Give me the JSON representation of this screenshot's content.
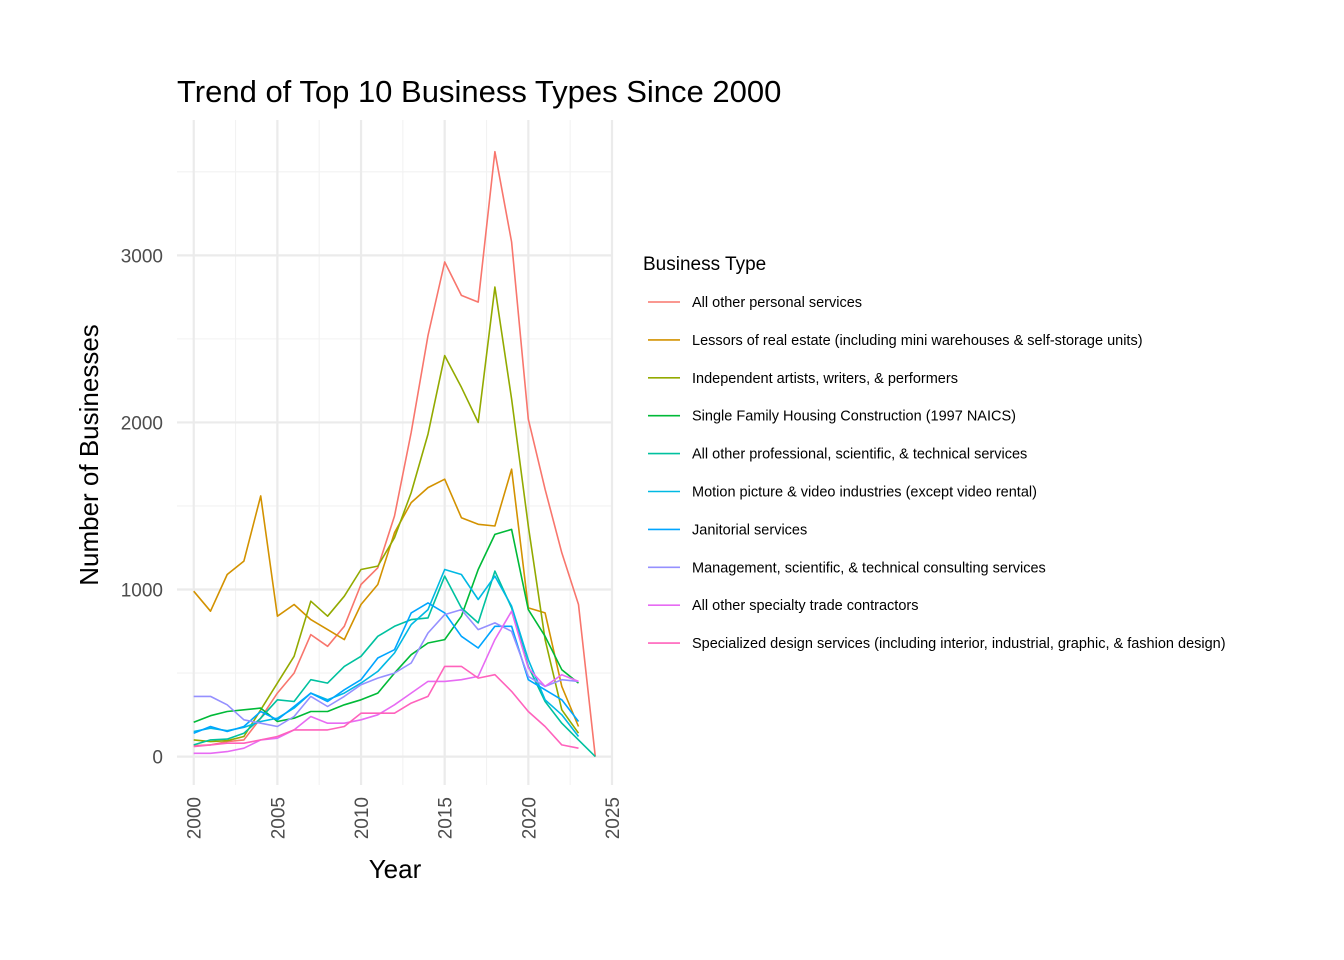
{
  "chart_data": {
    "type": "line",
    "title": "Trend of Top 10 Business Types Since 2000",
    "xlabel": "Year",
    "ylabel": "Number of Businesses",
    "xlim": [
      1999,
      2025
    ],
    "ylim": [
      -170,
      3810
    ],
    "x_ticks": [
      2000,
      2005,
      2010,
      2015,
      2020,
      2025
    ],
    "y_ticks": [
      0,
      1000,
      2000,
      3000
    ],
    "grid": true,
    "legend_title": "Business Type",
    "legend_position": "right",
    "x": [
      2000,
      2001,
      2002,
      2003,
      2004,
      2005,
      2006,
      2007,
      2008,
      2009,
      2010,
      2011,
      2012,
      2013,
      2014,
      2015,
      2016,
      2017,
      2018,
      2019,
      2020,
      2021,
      2022,
      2023,
      2024
    ],
    "series": [
      {
        "name": "All other personal services",
        "color": "#F8766D",
        "values": [
          65,
          70,
          90,
          100,
          230,
          380,
          500,
          730,
          660,
          780,
          1030,
          1130,
          1440,
          1940,
          2520,
          2960,
          2760,
          2720,
          3620,
          3080,
          2020,
          1600,
          1220,
          910,
          0
        ]
      },
      {
        "name": "Lessors of real estate (including mini warehouses & self-storage units)",
        "color": "#D39200",
        "values": [
          990,
          870,
          1090,
          1170,
          1560,
          840,
          910,
          820,
          760,
          700,
          910,
          1030,
          1340,
          1520,
          1610,
          1660,
          1430,
          1390,
          1380,
          1720,
          890,
          860,
          420,
          180,
          null
        ]
      },
      {
        "name": "Independent artists, writers, & performers",
        "color": "#93AA00",
        "values": [
          100,
          90,
          95,
          120,
          280,
          440,
          600,
          930,
          840,
          960,
          1120,
          1140,
          1310,
          1580,
          1930,
          2400,
          2210,
          2000,
          2810,
          2140,
          1380,
          700,
          280,
          140,
          null
        ]
      },
      {
        "name": "Single Family Housing Construction (1997 NAICS)",
        "color": "#00BA38",
        "values": [
          205,
          245,
          270,
          280,
          290,
          210,
          230,
          270,
          270,
          310,
          340,
          380,
          500,
          610,
          680,
          700,
          840,
          1120,
          1330,
          1360,
          880,
          720,
          520,
          440,
          null
        ]
      },
      {
        "name": "All other professional, scientific, & technical services",
        "color": "#00C19F",
        "values": [
          70,
          100,
          105,
          140,
          230,
          340,
          330,
          460,
          440,
          540,
          600,
          720,
          780,
          820,
          830,
          1080,
          890,
          800,
          1110,
          890,
          540,
          330,
          200,
          100,
          0
        ]
      },
      {
        "name": "Motion picture & video industries (except video rental)",
        "color": "#00B9E3",
        "values": [
          150,
          170,
          155,
          175,
          210,
          230,
          290,
          380,
          340,
          380,
          440,
          510,
          620,
          790,
          880,
          1120,
          1090,
          940,
          1080,
          900,
          580,
          340,
          250,
          120,
          null
        ]
      },
      {
        "name": "Janitorial services",
        "color": "#00A5FF",
        "values": [
          140,
          180,
          150,
          180,
          270,
          220,
          300,
          380,
          330,
          400,
          460,
          590,
          640,
          860,
          920,
          860,
          720,
          650,
          780,
          780,
          460,
          400,
          340,
          210,
          null
        ]
      },
      {
        "name": "Management, scientific, & technical consulting services",
        "color": "#9590FF",
        "values": [
          360,
          360,
          310,
          220,
          200,
          180,
          240,
          360,
          300,
          360,
          430,
          470,
          500,
          560,
          740,
          850,
          880,
          760,
          800,
          750,
          480,
          420,
          460,
          450,
          null
        ]
      },
      {
        "name": "All other specialty trade contractors",
        "color": "#E76BF3",
        "values": [
          20,
          20,
          30,
          50,
          100,
          110,
          160,
          240,
          200,
          200,
          220,
          250,
          310,
          380,
          450,
          450,
          460,
          480,
          700,
          870,
          530,
          420,
          490,
          450,
          null
        ]
      },
      {
        "name": "Specialized design services (including interior, industrial, graphic, & fashion design)",
        "color": "#FF62BC",
        "values": [
          60,
          70,
          80,
          80,
          100,
          120,
          160,
          160,
          160,
          180,
          260,
          260,
          260,
          320,
          360,
          540,
          540,
          470,
          490,
          390,
          270,
          180,
          70,
          50,
          null
        ]
      }
    ]
  }
}
